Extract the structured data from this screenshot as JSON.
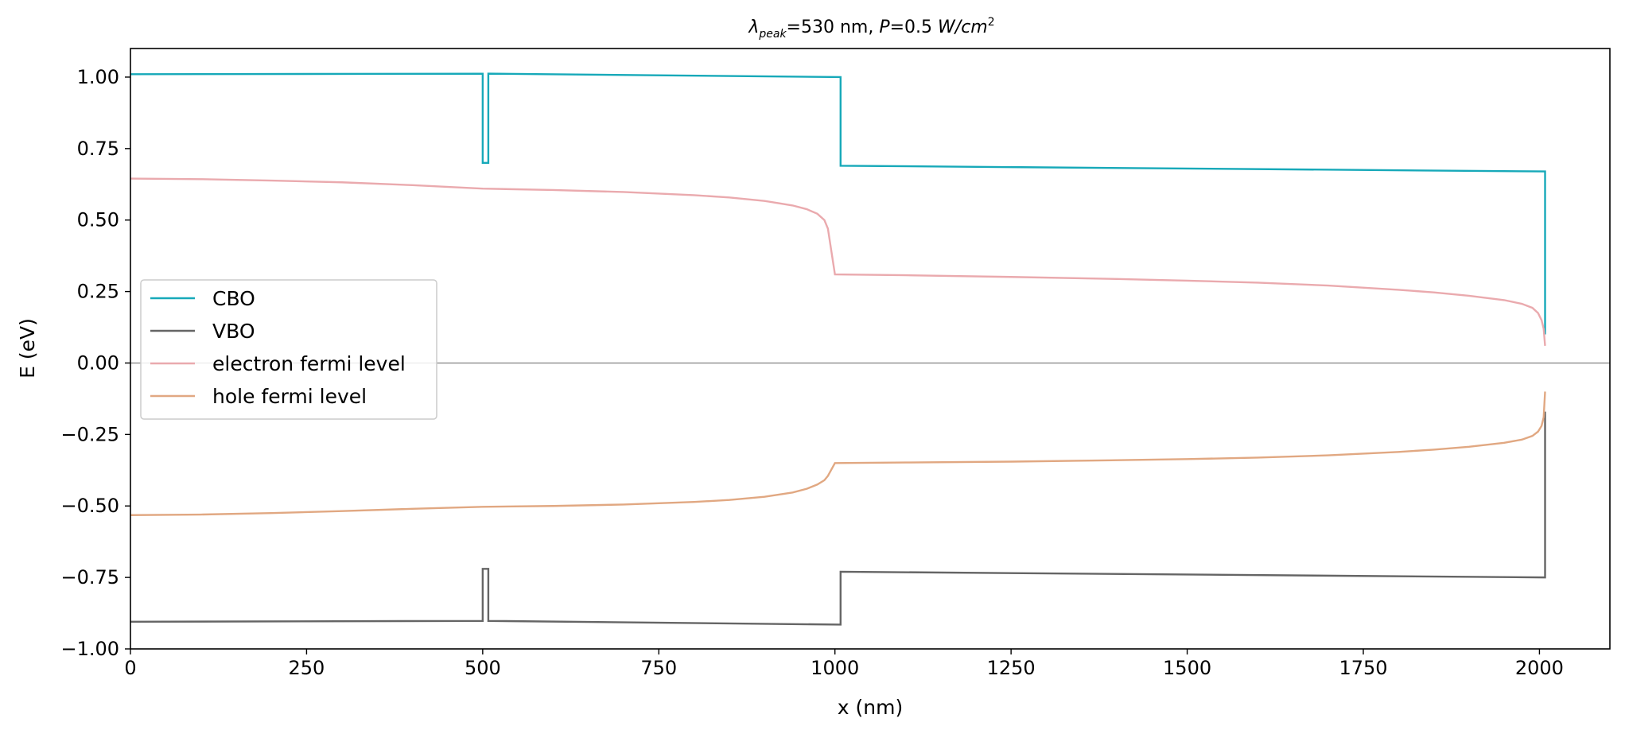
{
  "chart_data": {
    "type": "line",
    "title": {
      "lambda": "λ",
      "sub": "peak",
      "mid": "=530 nm, ",
      "p": "P",
      "eq": "=0.5 ",
      "unit_base": "W/cm",
      "unit_exp": "2"
    },
    "xlabel": "x (nm)",
    "ylabel": "E (eV)",
    "xlim": [
      0,
      2100
    ],
    "ylim": [
      -1.0,
      1.1
    ],
    "xticks": [
      0,
      250,
      500,
      750,
      1000,
      1250,
      1500,
      1750,
      2000
    ],
    "yticks": [
      -1.0,
      -0.75,
      -0.5,
      -0.25,
      0.0,
      0.25,
      0.5,
      0.75,
      1.0
    ],
    "xtick_labels": [
      "0",
      "250",
      "500",
      "750",
      "1000",
      "1250",
      "1500",
      "1750",
      "2000"
    ],
    "ytick_labels": [
      "−1.00",
      "−0.75",
      "−0.50",
      "−0.25",
      "0.00",
      "0.25",
      "0.50",
      "0.75",
      "1.00"
    ],
    "hline_y": 0.0,
    "legend_position": "center-left",
    "series": [
      {
        "name": "CBO",
        "color": "#17a9b9",
        "x": [
          0,
          500,
          500,
          508,
          508,
          1008,
          1008,
          2008,
          2008
        ],
        "y": [
          1.01,
          1.012,
          0.7,
          0.7,
          1.012,
          1.0,
          0.69,
          0.67,
          0.1
        ]
      },
      {
        "name": "VBO",
        "color": "#656565",
        "x": [
          0,
          500,
          500,
          508,
          508,
          1008,
          1008,
          2008,
          2008
        ],
        "y": [
          -0.905,
          -0.902,
          -0.72,
          -0.72,
          -0.902,
          -0.915,
          -0.73,
          -0.75,
          -0.17
        ]
      },
      {
        "name": "electron fermi level",
        "color": "#eaaaae",
        "x": [
          0,
          100,
          200,
          300,
          400,
          500,
          600,
          700,
          800,
          850,
          900,
          940,
          960,
          975,
          985,
          990,
          1000,
          1100,
          1250,
          1400,
          1500,
          1600,
          1700,
          1800,
          1850,
          1900,
          1950,
          1975,
          1990,
          1998,
          2003,
          2006,
          2008
        ],
        "y": [
          0.645,
          0.643,
          0.638,
          0.632,
          0.622,
          0.61,
          0.605,
          0.598,
          0.587,
          0.579,
          0.567,
          0.551,
          0.538,
          0.522,
          0.5,
          0.47,
          0.31,
          0.307,
          0.301,
          0.294,
          0.288,
          0.281,
          0.271,
          0.256,
          0.247,
          0.235,
          0.22,
          0.207,
          0.193,
          0.175,
          0.15,
          0.12,
          0.06
        ]
      },
      {
        "name": "hole fermi level",
        "color": "#e1a882",
        "x": [
          0,
          100,
          200,
          300,
          400,
          500,
          600,
          700,
          800,
          850,
          900,
          940,
          960,
          975,
          985,
          990,
          1000,
          1100,
          1250,
          1400,
          1500,
          1600,
          1700,
          1800,
          1850,
          1900,
          1950,
          1975,
          1990,
          1998,
          2003,
          2006,
          2008
        ],
        "y": [
          -0.532,
          -0.53,
          -0.525,
          -0.518,
          -0.51,
          -0.503,
          -0.5,
          -0.495,
          -0.486,
          -0.479,
          -0.468,
          -0.453,
          -0.44,
          -0.425,
          -0.41,
          -0.395,
          -0.35,
          -0.348,
          -0.345,
          -0.34,
          -0.336,
          -0.331,
          -0.323,
          -0.311,
          -0.303,
          -0.293,
          -0.279,
          -0.268,
          -0.255,
          -0.24,
          -0.22,
          -0.19,
          -0.1
        ]
      }
    ]
  }
}
